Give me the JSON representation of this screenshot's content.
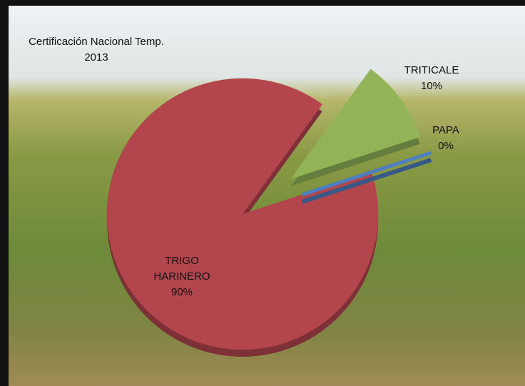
{
  "chart_data": {
    "type": "pie",
    "title": "Certificación Nacional Temp. 2013",
    "categories": [
      "TRIGO HARINERO",
      "TRITICALE",
      "PAPA"
    ],
    "values": [
      90,
      10,
      0
    ],
    "value_labels": [
      "90%",
      "10%",
      "0%"
    ],
    "colors": [
      "#b3454c",
      "#92b457",
      "#4e7fc0"
    ]
  }
}
